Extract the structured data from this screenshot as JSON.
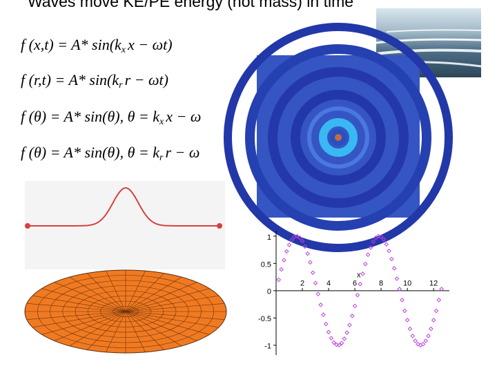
{
  "header": {
    "title": "Waves move KE/PE energy (not mass) in time"
  },
  "equations": [
    {
      "main": "f (x,t) = A* sin(k",
      "sub": "x",
      "rest": "x − ωt)"
    },
    {
      "main": "f (r,t) = A* sin(k",
      "sub": "r",
      "rest": "r − ωt)"
    },
    {
      "main": "f (θ) = A* sin(θ), θ = k",
      "sub": "x",
      "rest": "x − ω"
    },
    {
      "main": "f (θ) = A* sin(θ), θ = k",
      "sub": "r",
      "rest": "r − ω"
    }
  ],
  "chart_data": {
    "type": "scatter",
    "x_label": "x",
    "color": "#c040e0",
    "x": [
      0.2,
      0.4,
      0.6,
      0.8,
      1.0,
      1.2,
      1.4,
      1.6,
      1.8,
      2.0,
      2.2,
      2.4,
      2.6,
      2.8,
      3.0,
      3.2,
      3.4,
      3.6,
      3.8,
      4.0,
      4.2,
      4.4,
      4.6,
      4.8,
      5.0,
      5.2,
      5.4,
      5.6,
      5.8,
      6.0,
      6.2,
      6.4,
      6.6,
      6.8,
      7.0,
      7.2,
      7.4,
      7.6,
      7.8,
      8.0,
      8.2,
      8.4,
      8.6,
      8.8,
      9.0,
      9.2,
      9.4,
      9.6,
      9.8,
      10.0,
      10.2,
      10.4,
      10.6,
      10.8,
      11.0,
      11.2,
      11.4,
      11.6,
      11.8,
      12.0,
      12.2,
      12.4,
      12.6
    ],
    "values": [
      0.2,
      0.39,
      0.56,
      0.72,
      0.84,
      0.93,
      0.99,
      1.0,
      0.97,
      0.91,
      0.81,
      0.68,
      0.52,
      0.33,
      0.14,
      -0.06,
      -0.26,
      -0.44,
      -0.61,
      -0.76,
      -0.87,
      -0.95,
      -0.99,
      -1.0,
      -0.96,
      -0.88,
      -0.77,
      -0.63,
      -0.46,
      -0.28,
      -0.08,
      0.12,
      0.31,
      0.49,
      0.66,
      0.79,
      0.9,
      0.97,
      1.0,
      0.99,
      0.94,
      0.85,
      0.73,
      0.58,
      0.41,
      0.22,
      0.03,
      -0.17,
      -0.37,
      -0.54,
      -0.7,
      -0.83,
      -0.92,
      -0.98,
      -1.0,
      -0.98,
      -0.92,
      -0.83,
      -0.7,
      -0.54,
      -0.37,
      -0.17,
      0.03
    ],
    "xlim": [
      0,
      13.2
    ],
    "ylim": [
      -1.18,
      1.1
    ],
    "xticks": [
      2,
      4,
      6,
      8,
      10,
      12
    ],
    "yticks": [
      1,
      0.5,
      0,
      -0.5,
      -1
    ]
  }
}
